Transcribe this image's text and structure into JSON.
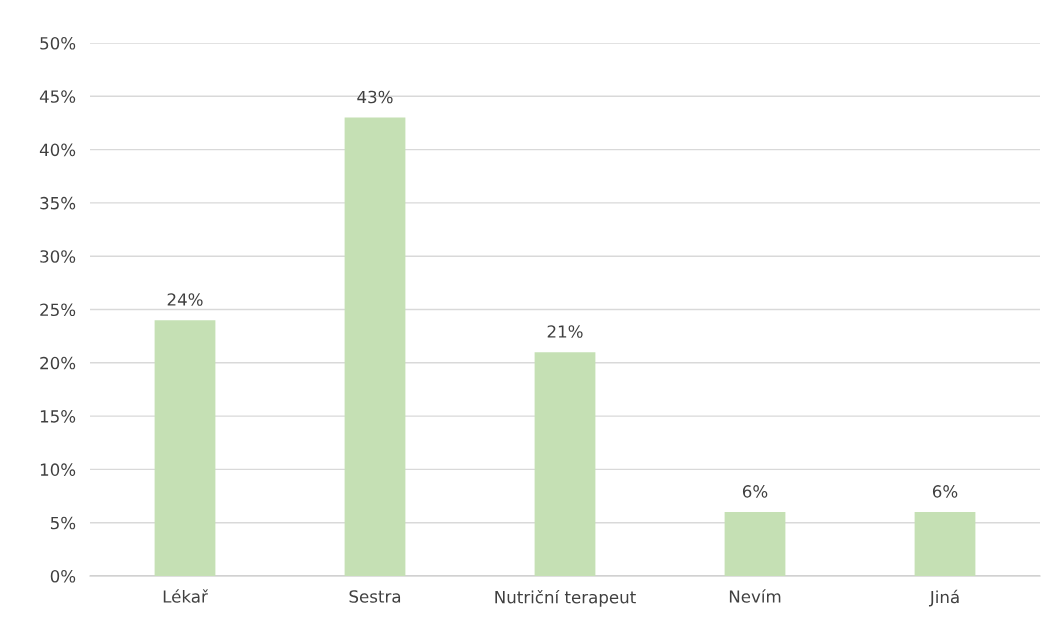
{
  "chart_data": {
    "type": "bar",
    "categories": [
      "Lékař",
      "Sestra",
      "Nutriční terapeut",
      "Nevím",
      "Jiná"
    ],
    "values": [
      24,
      43,
      21,
      6,
      6
    ],
    "value_labels": [
      "24%",
      "43%",
      "21%",
      "6%",
      "6%"
    ],
    "color": "#c5e0b4",
    "ylim": [
      0,
      50
    ],
    "yticks": [
      {
        "value": 0,
        "label": "0%"
      },
      {
        "value": 5,
        "label": "5%"
      },
      {
        "value": 10,
        "label": "10%"
      },
      {
        "value": 15,
        "label": "15%"
      },
      {
        "value": 20,
        "label": "20%"
      },
      {
        "value": 25,
        "label": "25%"
      },
      {
        "value": 30,
        "label": "30%"
      },
      {
        "value": 35,
        "label": "35%"
      },
      {
        "value": 40,
        "label": "40%"
      },
      {
        "value": 45,
        "label": "45%"
      },
      {
        "value": 50,
        "label": "50%"
      }
    ],
    "grid": "y",
    "legend": false
  }
}
